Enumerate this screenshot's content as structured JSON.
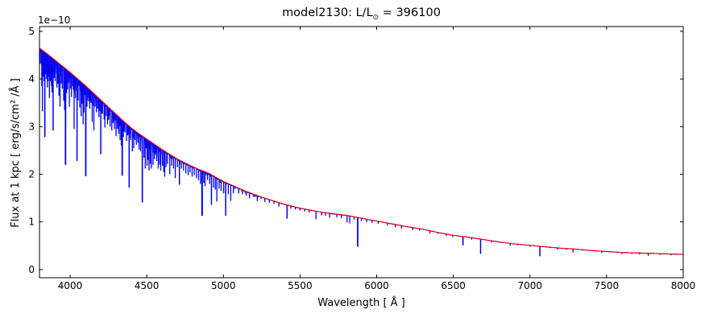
{
  "title": {
    "prefix": "model2130: L/L",
    "sun_symbol": "⊙",
    "suffix": " = 396100"
  },
  "chart_data": {
    "type": "line",
    "title": "model2130: L/L⊙ = 396100",
    "xlabel": "Wavelength [ Å ]",
    "ylabel": "Flux at 1 kpc [ erg/s/cm² /Å ]",
    "y_offset_label": "1e−10",
    "xlim": [
      3800,
      8000
    ],
    "ylim": [
      0,
      5
    ],
    "x_ticks": [
      4000,
      4500,
      5000,
      5500,
      6000,
      6500,
      7000,
      7500,
      8000
    ],
    "y_ticks": [
      0,
      1,
      2,
      3,
      4,
      5
    ],
    "grid": false,
    "legend": null,
    "colors": {
      "spectrum": "#0000ee",
      "continuum": "#ff0000",
      "axis": "#000000"
    },
    "series": [
      {
        "name": "observed-spectrum",
        "role": "data"
      },
      {
        "name": "continuum-model",
        "role": "model"
      }
    ],
    "continuum_points": [
      [
        3800,
        4.65
      ],
      [
        3850,
        4.53
      ],
      [
        3900,
        4.4
      ],
      [
        3950,
        4.27
      ],
      [
        4000,
        4.14
      ],
      [
        4050,
        4.0
      ],
      [
        4100,
        3.86
      ],
      [
        4150,
        3.71
      ],
      [
        4200,
        3.56
      ],
      [
        4250,
        3.41
      ],
      [
        4300,
        3.26
      ],
      [
        4350,
        3.11
      ],
      [
        4400,
        2.97
      ],
      [
        4450,
        2.85
      ],
      [
        4500,
        2.74
      ],
      [
        4550,
        2.63
      ],
      [
        4600,
        2.52
      ],
      [
        4650,
        2.42
      ],
      [
        4700,
        2.32
      ],
      [
        4750,
        2.24
      ],
      [
        4800,
        2.16
      ],
      [
        4850,
        2.09
      ],
      [
        4900,
        2.03
      ],
      [
        4950,
        1.94
      ],
      [
        5000,
        1.85
      ],
      [
        5050,
        1.78
      ],
      [
        5100,
        1.71
      ],
      [
        5150,
        1.64
      ],
      [
        5200,
        1.58
      ],
      [
        5250,
        1.52
      ],
      [
        5300,
        1.47
      ],
      [
        5350,
        1.42
      ],
      [
        5400,
        1.37
      ],
      [
        5450,
        1.33
      ],
      [
        5500,
        1.29
      ],
      [
        5550,
        1.26
      ],
      [
        5600,
        1.23
      ],
      [
        5650,
        1.2
      ],
      [
        5700,
        1.18
      ],
      [
        5750,
        1.16
      ],
      [
        5800,
        1.14
      ],
      [
        5850,
        1.11
      ],
      [
        5900,
        1.08
      ],
      [
        5950,
        1.05
      ],
      [
        6000,
        1.02
      ],
      [
        6100,
        0.96
      ],
      [
        6200,
        0.9
      ],
      [
        6300,
        0.85
      ],
      [
        6400,
        0.78
      ],
      [
        6500,
        0.72
      ],
      [
        6600,
        0.68
      ],
      [
        6700,
        0.63
      ],
      [
        6800,
        0.58
      ],
      [
        6900,
        0.54
      ],
      [
        7000,
        0.51
      ],
      [
        7100,
        0.48
      ],
      [
        7200,
        0.45
      ],
      [
        7300,
        0.43
      ],
      [
        7400,
        0.4
      ],
      [
        7500,
        0.38
      ],
      [
        7600,
        0.36
      ],
      [
        7700,
        0.35
      ],
      [
        7800,
        0.34
      ],
      [
        7900,
        0.33
      ],
      [
        8000,
        0.32
      ]
    ],
    "absorption_lines": [
      [
        3806,
        4.32
      ],
      [
        3815,
        3.85
      ],
      [
        3819,
        3.32
      ],
      [
        3824,
        4.05
      ],
      [
        3830,
        3.95
      ],
      [
        3835,
        2.78,
        1.6
      ],
      [
        3841,
        4.1
      ],
      [
        3847,
        4.0
      ],
      [
        3852,
        3.82
      ],
      [
        3856,
        3.95
      ],
      [
        3860,
        4.05
      ],
      [
        3865,
        3.6
      ],
      [
        3872,
        3.95
      ],
      [
        3878,
        3.85
      ],
      [
        3882,
        3.72
      ],
      [
        3889,
        2.92,
        1.5
      ],
      [
        3896,
        4.02
      ],
      [
        3903,
        3.95
      ],
      [
        3914,
        3.82
      ],
      [
        3920,
        3.9
      ],
      [
        3927,
        3.65
      ],
      [
        3934,
        3.42
      ],
      [
        3942,
        3.9
      ],
      [
        3949,
        3.8
      ],
      [
        3958,
        3.55
      ],
      [
        3964,
        3.35
      ],
      [
        3970,
        2.2,
        1.8
      ],
      [
        3977,
        3.7
      ],
      [
        3984,
        3.78
      ],
      [
        3995,
        3.42
      ],
      [
        4004,
        3.8
      ],
      [
        4009,
        3.62
      ],
      [
        4017,
        3.85
      ],
      [
        4026,
        2.95
      ],
      [
        4034,
        3.6
      ],
      [
        4045,
        2.28,
        1.5
      ],
      [
        4052,
        3.55
      ],
      [
        4063,
        3.4
      ],
      [
        4072,
        3.22
      ],
      [
        4078,
        3.48
      ],
      [
        4085,
        3.05
      ],
      [
        4090,
        3.3
      ],
      [
        4102,
        1.96,
        1.8
      ],
      [
        4110,
        3.42
      ],
      [
        4121,
        3.55
      ],
      [
        4128,
        3.38
      ],
      [
        4137,
        3.5
      ],
      [
        4144,
        3.1
      ],
      [
        4155,
        2.92
      ],
      [
        4163,
        3.42
      ],
      [
        4172,
        3.3
      ],
      [
        4180,
        3.38
      ],
      [
        4188,
        3.2
      ],
      [
        4200,
        2.42,
        1.5
      ],
      [
        4211,
        3.28
      ],
      [
        4222,
        3.15
      ],
      [
        4227,
        2.98
      ],
      [
        4236,
        3.22
      ],
      [
        4244,
        3.05
      ],
      [
        4251,
        3.15
      ],
      [
        4261,
        3.0
      ],
      [
        4272,
        2.92
      ],
      [
        4280,
        3.08
      ],
      [
        4290,
        2.95
      ],
      [
        4300,
        2.8
      ],
      [
        4310,
        2.95
      ],
      [
        4317,
        2.85
      ],
      [
        4326,
        2.72
      ],
      [
        4334,
        2.6
      ],
      [
        4340,
        1.97,
        1.8
      ],
      [
        4347,
        2.78
      ],
      [
        4358,
        2.88
      ],
      [
        4368,
        2.7
      ],
      [
        4375,
        2.82
      ],
      [
        4385,
        1.72,
        1.5
      ],
      [
        4395,
        2.72
      ],
      [
        4406,
        2.48
      ],
      [
        4415,
        2.55
      ],
      [
        4423,
        2.72
      ],
      [
        4432,
        2.62
      ],
      [
        4442,
        2.7
      ],
      [
        4450,
        2.52
      ],
      [
        4460,
        2.48
      ],
      [
        4471,
        1.41,
        1.6
      ],
      [
        4482,
        2.35
      ],
      [
        4490,
        2.12
      ],
      [
        4502,
        2.18
      ],
      [
        4509,
        2.3
      ],
      [
        4515,
        2.08
      ],
      [
        4523,
        2.22
      ],
      [
        4530,
        2.12
      ],
      [
        4541,
        2.2
      ],
      [
        4550,
        2.32
      ],
      [
        4565,
        2.28
      ],
      [
        4575,
        2.12
      ],
      [
        4584,
        2.2
      ],
      [
        4591,
        2.08
      ],
      [
        4602,
        2.18
      ],
      [
        4610,
        2.05
      ],
      [
        4617,
        1.95
      ],
      [
        4626,
        2.15
      ],
      [
        4635,
        2.22
      ],
      [
        4650,
        2.0
      ],
      [
        4662,
        2.18
      ],
      [
        4675,
        2.12
      ],
      [
        4686,
        1.92
      ],
      [
        4700,
        2.15
      ],
      [
        4713,
        1.78,
        1.5
      ],
      [
        4726,
        2.12
      ],
      [
        4740,
        2.08
      ],
      [
        4755,
        2.02
      ],
      [
        4770,
        1.98
      ],
      [
        4782,
        2.04
      ],
      [
        4796,
        1.95
      ],
      [
        4810,
        1.98
      ],
      [
        4824,
        1.92
      ],
      [
        4838,
        1.88
      ],
      [
        4851,
        1.8
      ],
      [
        4861,
        1.13,
        2.0
      ],
      [
        4872,
        1.82
      ],
      [
        4880,
        1.75
      ],
      [
        4896,
        1.88
      ],
      [
        4910,
        1.8
      ],
      [
        4922,
        1.36,
        1.5
      ],
      [
        4935,
        1.72
      ],
      [
        4947,
        1.68
      ],
      [
        4957,
        1.43
      ],
      [
        4972,
        1.7
      ],
      [
        4985,
        1.65
      ],
      [
        5002,
        1.6
      ],
      [
        5015,
        1.13,
        1.5
      ],
      [
        5032,
        1.58
      ],
      [
        5048,
        1.44
      ],
      [
        5065,
        1.6
      ],
      [
        5100,
        1.6
      ],
      [
        5125,
        1.58
      ],
      [
        5150,
        1.55
      ],
      [
        5170,
        1.5
      ],
      [
        5198,
        1.52
      ],
      [
        5221,
        1.44
      ],
      [
        5245,
        1.48
      ],
      [
        5270,
        1.42
      ],
      [
        5300,
        1.4
      ],
      [
        5330,
        1.38
      ],
      [
        5362,
        1.32
      ],
      [
        5415,
        1.07,
        1.5
      ],
      [
        5440,
        1.28
      ],
      [
        5470,
        1.26
      ],
      [
        5499,
        1.24
      ],
      [
        5530,
        1.22
      ],
      [
        5560,
        1.2
      ],
      [
        5604,
        1.06
      ],
      [
        5640,
        1.14
      ],
      [
        5666,
        1.13
      ],
      [
        5693,
        1.09
      ],
      [
        5740,
        1.1
      ],
      [
        5770,
        1.08
      ],
      [
        5807,
        0.99
      ],
      [
        5824,
        0.97
      ],
      [
        5853,
        1.05
      ],
      [
        5876,
        0.48,
        1.8
      ],
      [
        5900,
        1.02
      ],
      [
        5935,
        1.0
      ],
      [
        5970,
        0.98
      ],
      [
        6010,
        0.96
      ],
      [
        6070,
        0.93
      ],
      [
        6122,
        0.89
      ],
      [
        6162,
        0.86
      ],
      [
        6235,
        0.83
      ],
      [
        6280,
        0.82
      ],
      [
        6347,
        0.76
      ],
      [
        6400,
        0.75
      ],
      [
        6455,
        0.71
      ],
      [
        6495,
        0.69
      ],
      [
        6563,
        0.51,
        1.6
      ],
      [
        6620,
        0.63
      ],
      [
        6678,
        0.33,
        1.5
      ],
      [
        6750,
        0.57
      ],
      [
        6871,
        0.5
      ],
      [
        6920,
        0.51
      ],
      [
        7000,
        0.48
      ],
      [
        7065,
        0.28,
        1.5
      ],
      [
        7130,
        0.45
      ],
      [
        7180,
        0.42
      ],
      [
        7240,
        0.42
      ],
      [
        7281,
        0.36
      ],
      [
        7340,
        0.4
      ],
      [
        7420,
        0.38
      ],
      [
        7468,
        0.35
      ],
      [
        7530,
        0.36
      ],
      [
        7600,
        0.33
      ],
      [
        7665,
        0.33
      ],
      [
        7715,
        0.32
      ],
      [
        7772,
        0.29
      ],
      [
        7850,
        0.31
      ],
      [
        7920,
        0.3
      ]
    ],
    "noise": {
      "seed": 42,
      "bands": [
        {
          "range": [
            3802,
            4600
          ],
          "count": 220,
          "max_depth_frac": 0.08
        },
        {
          "range": [
            4600,
            5250
          ],
          "count": 45,
          "max_depth_frac": 0.035
        },
        {
          "range": [
            5250,
            7990
          ],
          "count": 45,
          "max_depth_frac": 0.02
        }
      ],
      "envelope_jitter_blue": 0.012,
      "envelope_jitter_red": 0.004,
      "jitter_split_wavelength": 5250
    }
  }
}
